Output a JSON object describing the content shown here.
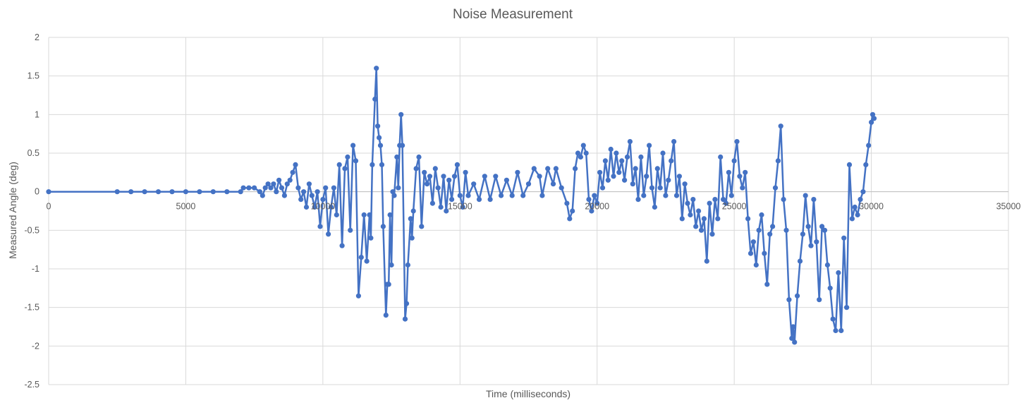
{
  "chart_data": {
    "type": "scatter",
    "title": "Noise Measurement",
    "xlabel": "Time (milliseconds)",
    "ylabel": "Measured Angle (deg)",
    "xlim": [
      0,
      35000
    ],
    "ylim": [
      -2.5,
      2
    ],
    "x_ticks": [
      0,
      5000,
      10000,
      15000,
      20000,
      25000,
      30000,
      35000
    ],
    "y_ticks": [
      2,
      1.5,
      1,
      0.5,
      0,
      -0.5,
      -1,
      -1.5,
      -2,
      -2.5
    ],
    "grid": true,
    "legend": "none",
    "series": [
      {
        "color": "#4472C4",
        "marker": "circle",
        "lines": true,
        "points": [
          [
            0,
            0
          ],
          [
            2500,
            0
          ],
          [
            3000,
            0
          ],
          [
            3500,
            0
          ],
          [
            4000,
            0
          ],
          [
            4500,
            0
          ],
          [
            5000,
            0
          ],
          [
            5500,
            0
          ],
          [
            6000,
            0
          ],
          [
            6500,
            0
          ],
          [
            7000,
            0
          ],
          [
            7100,
            0.05
          ],
          [
            7300,
            0.05
          ],
          [
            7500,
            0.05
          ],
          [
            7700,
            0
          ],
          [
            7800,
            -0.05
          ],
          [
            7900,
            0.05
          ],
          [
            8000,
            0.1
          ],
          [
            8100,
            0.05
          ],
          [
            8200,
            0.1
          ],
          [
            8300,
            0
          ],
          [
            8400,
            0.15
          ],
          [
            8500,
            0.05
          ],
          [
            8600,
            -0.05
          ],
          [
            8700,
            0.1
          ],
          [
            8800,
            0.15
          ],
          [
            8900,
            0.25
          ],
          [
            9000,
            0.35
          ],
          [
            9100,
            0.05
          ],
          [
            9200,
            -0.1
          ],
          [
            9300,
            0
          ],
          [
            9400,
            -0.2
          ],
          [
            9500,
            0.1
          ],
          [
            9600,
            -0.05
          ],
          [
            9700,
            -0.2
          ],
          [
            9800,
            0
          ],
          [
            9900,
            -0.45
          ],
          [
            10000,
            -0.1
          ],
          [
            10100,
            0.05
          ],
          [
            10200,
            -0.55
          ],
          [
            10300,
            -0.2
          ],
          [
            10400,
            0.05
          ],
          [
            10500,
            -0.3
          ],
          [
            10600,
            0.35
          ],
          [
            10700,
            -0.7
          ],
          [
            10800,
            0.3
          ],
          [
            10900,
            0.45
          ],
          [
            11000,
            -0.5
          ],
          [
            11100,
            0.6
          ],
          [
            11200,
            0.4
          ],
          [
            11300,
            -1.35
          ],
          [
            11400,
            -0.85
          ],
          [
            11500,
            -0.3
          ],
          [
            11600,
            -0.9
          ],
          [
            11700,
            -0.3
          ],
          [
            11750,
            -0.6
          ],
          [
            11800,
            0.35
          ],
          [
            11900,
            1.2
          ],
          [
            11950,
            1.6
          ],
          [
            12000,
            0.85
          ],
          [
            12050,
            0.7
          ],
          [
            12100,
            0.6
          ],
          [
            12150,
            0.35
          ],
          [
            12200,
            -0.45
          ],
          [
            12300,
            -1.6
          ],
          [
            12350,
            -1.2
          ],
          [
            12400,
            -1.2
          ],
          [
            12450,
            -0.3
          ],
          [
            12500,
            -0.95
          ],
          [
            12550,
            0
          ],
          [
            12600,
            -0.05
          ],
          [
            12700,
            0.45
          ],
          [
            12750,
            0.05
          ],
          [
            12800,
            0.6
          ],
          [
            12850,
            1.0
          ],
          [
            12900,
            0.6
          ],
          [
            13000,
            -1.65
          ],
          [
            13050,
            -1.45
          ],
          [
            13100,
            -0.95
          ],
          [
            13200,
            -0.35
          ],
          [
            13250,
            -0.6
          ],
          [
            13300,
            -0.25
          ],
          [
            13400,
            0.3
          ],
          [
            13500,
            0.45
          ],
          [
            13600,
            -0.45
          ],
          [
            13700,
            0.25
          ],
          [
            13800,
            0.1
          ],
          [
            13900,
            0.2
          ],
          [
            14000,
            -0.15
          ],
          [
            14100,
            0.3
          ],
          [
            14200,
            0.05
          ],
          [
            14300,
            -0.2
          ],
          [
            14400,
            0.2
          ],
          [
            14500,
            -0.25
          ],
          [
            14600,
            0.15
          ],
          [
            14700,
            -0.1
          ],
          [
            14800,
            0.2
          ],
          [
            14900,
            0.35
          ],
          [
            15000,
            -0.05
          ],
          [
            15100,
            -0.2
          ],
          [
            15200,
            0.25
          ],
          [
            15300,
            -0.05
          ],
          [
            15500,
            0.1
          ],
          [
            15700,
            -0.1
          ],
          [
            15900,
            0.2
          ],
          [
            16100,
            -0.1
          ],
          [
            16300,
            0.2
          ],
          [
            16500,
            -0.05
          ],
          [
            16700,
            0.15
          ],
          [
            16900,
            -0.05
          ],
          [
            17100,
            0.25
          ],
          [
            17300,
            -0.05
          ],
          [
            17500,
            0.1
          ],
          [
            17700,
            0.3
          ],
          [
            17900,
            0.2
          ],
          [
            18000,
            -0.05
          ],
          [
            18200,
            0.3
          ],
          [
            18400,
            0.1
          ],
          [
            18500,
            0.3
          ],
          [
            18700,
            0.05
          ],
          [
            18900,
            -0.15
          ],
          [
            19000,
            -0.35
          ],
          [
            19100,
            -0.25
          ],
          [
            19200,
            0.3
          ],
          [
            19300,
            0.5
          ],
          [
            19400,
            0.45
          ],
          [
            19500,
            0.6
          ],
          [
            19600,
            0.5
          ],
          [
            19700,
            -0.1
          ],
          [
            19800,
            -0.25
          ],
          [
            19900,
            -0.05
          ],
          [
            20000,
            -0.15
          ],
          [
            20100,
            0.25
          ],
          [
            20200,
            0.05
          ],
          [
            20300,
            0.4
          ],
          [
            20400,
            0.15
          ],
          [
            20500,
            0.55
          ],
          [
            20600,
            0.2
          ],
          [
            20700,
            0.5
          ],
          [
            20800,
            0.25
          ],
          [
            20900,
            0.4
          ],
          [
            21000,
            0.15
          ],
          [
            21100,
            0.45
          ],
          [
            21200,
            0.65
          ],
          [
            21300,
            0.1
          ],
          [
            21400,
            0.3
          ],
          [
            21500,
            -0.1
          ],
          [
            21600,
            0.45
          ],
          [
            21700,
            -0.05
          ],
          [
            21800,
            0.2
          ],
          [
            21900,
            0.6
          ],
          [
            22000,
            0.05
          ],
          [
            22100,
            -0.2
          ],
          [
            22200,
            0.3
          ],
          [
            22300,
            0.05
          ],
          [
            22400,
            0.5
          ],
          [
            22500,
            -0.05
          ],
          [
            22600,
            0.15
          ],
          [
            22700,
            0.4
          ],
          [
            22800,
            0.65
          ],
          [
            22900,
            -0.05
          ],
          [
            23000,
            0.2
          ],
          [
            23100,
            -0.35
          ],
          [
            23200,
            0.1
          ],
          [
            23300,
            -0.15
          ],
          [
            23400,
            -0.3
          ],
          [
            23500,
            -0.1
          ],
          [
            23600,
            -0.45
          ],
          [
            23700,
            -0.25
          ],
          [
            23800,
            -0.5
          ],
          [
            23900,
            -0.35
          ],
          [
            24000,
            -0.9
          ],
          [
            24100,
            -0.15
          ],
          [
            24200,
            -0.55
          ],
          [
            24300,
            -0.1
          ],
          [
            24400,
            -0.35
          ],
          [
            24500,
            0.45
          ],
          [
            24600,
            -0.1
          ],
          [
            24700,
            -0.15
          ],
          [
            24800,
            0.25
          ],
          [
            24900,
            -0.05
          ],
          [
            25000,
            0.4
          ],
          [
            25100,
            0.65
          ],
          [
            25200,
            0.2
          ],
          [
            25300,
            0.05
          ],
          [
            25400,
            0.25
          ],
          [
            25500,
            -0.35
          ],
          [
            25600,
            -0.8
          ],
          [
            25700,
            -0.65
          ],
          [
            25800,
            -0.95
          ],
          [
            25900,
            -0.5
          ],
          [
            26000,
            -0.3
          ],
          [
            26100,
            -0.8
          ],
          [
            26200,
            -1.2
          ],
          [
            26300,
            -0.55
          ],
          [
            26400,
            -0.45
          ],
          [
            26500,
            0.05
          ],
          [
            26600,
            0.4
          ],
          [
            26700,
            0.85
          ],
          [
            26800,
            -0.1
          ],
          [
            26900,
            -0.5
          ],
          [
            27000,
            -1.4
          ],
          [
            27100,
            -1.9
          ],
          [
            27150,
            -1.75
          ],
          [
            27200,
            -1.95
          ],
          [
            27300,
            -1.35
          ],
          [
            27400,
            -0.9
          ],
          [
            27500,
            -0.55
          ],
          [
            27600,
            -0.05
          ],
          [
            27700,
            -0.45
          ],
          [
            27800,
            -0.7
          ],
          [
            27900,
            -0.1
          ],
          [
            28000,
            -0.65
          ],
          [
            28100,
            -1.4
          ],
          [
            28200,
            -0.45
          ],
          [
            28300,
            -0.5
          ],
          [
            28400,
            -0.95
          ],
          [
            28500,
            -1.25
          ],
          [
            28600,
            -1.65
          ],
          [
            28700,
            -1.8
          ],
          [
            28800,
            -1.05
          ],
          [
            28900,
            -1.8
          ],
          [
            29000,
            -0.6
          ],
          [
            29100,
            -1.5
          ],
          [
            29200,
            0.35
          ],
          [
            29300,
            -0.35
          ],
          [
            29400,
            -0.2
          ],
          [
            29500,
            -0.3
          ],
          [
            29600,
            -0.1
          ],
          [
            29700,
            0
          ],
          [
            29800,
            0.35
          ],
          [
            29900,
            0.6
          ],
          [
            30000,
            0.9
          ],
          [
            30050,
            1.0
          ],
          [
            30100,
            0.95
          ]
        ]
      }
    ]
  }
}
